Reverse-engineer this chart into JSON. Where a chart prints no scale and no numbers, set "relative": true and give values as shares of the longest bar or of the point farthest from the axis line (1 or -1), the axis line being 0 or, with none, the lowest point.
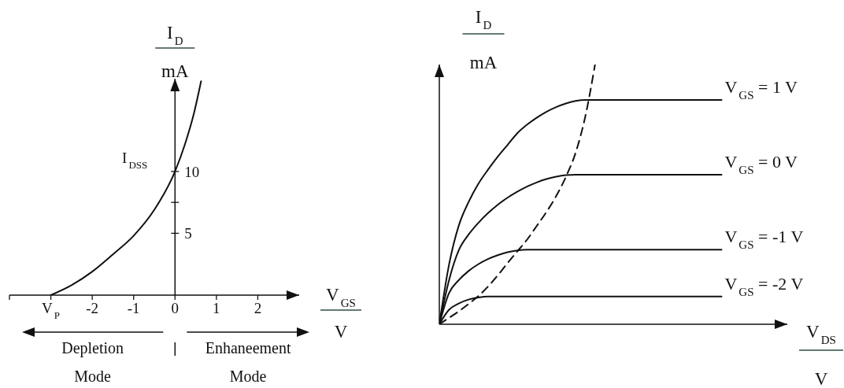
{
  "chart_data": [
    {
      "type": "line",
      "xlabel": "V$_{GS}$\nV",
      "ylabel": "I$_{D}$\nmA",
      "x": [
        -3,
        -2.5,
        -2,
        -1.5,
        -1,
        -0.5,
        0,
        0.25,
        0.45,
        0.63
      ],
      "values": [
        0,
        0.8,
        1.9,
        3.3,
        4.8,
        6.9,
        10,
        12.3,
        14.6,
        17.3
      ],
      "color": "#111111",
      "xlim": [
        -4,
        3
      ],
      "ylim": [
        0,
        17.5
      ],
      "xticks": [
        {
          "value": -4,
          "label": null
        },
        {
          "value": -3,
          "label": "V$_{P}$"
        },
        -2,
        -1,
        0,
        1,
        2
      ],
      "yticks": [
        5,
        {
          "value": 7.5,
          "label": null
        },
        10
      ],
      "annotations": [
        {
          "text": "I$_{DSS}$",
          "x": 0,
          "y": 10
        },
        "Depletion\nMode",
        "Enhaneement\nMode"
      ]
    },
    {
      "type": "line",
      "relative": true,
      "xlabel": "V$_{DS}$\nV",
      "ylabel": "I$_{D}$\nmA",
      "categories": [
        null,
        null,
        null,
        null,
        null,
        null,
        null,
        null,
        null,
        null,
        null,
        null,
        null,
        null,
        null,
        null,
        null,
        null,
        null,
        null,
        null,
        null,
        null,
        null,
        null,
        null,
        null,
        null,
        null,
        null
      ],
      "series": [
        {
          "name": "V$_{GS}$ = 1 V",
          "color": "#111111",
          "values": [
            0,
            0.23,
            0.38,
            0.47,
            0.54,
            0.595,
            0.645,
            0.69,
            0.735,
            0.768,
            0.795,
            0.818,
            0.836,
            0.85,
            0.86,
            0.864,
            0.864,
            0.864,
            0.864,
            0.864,
            0.864,
            0.864,
            0.864,
            0.864,
            0.864,
            0.864,
            0.864,
            0.864,
            0.864,
            0.864
          ]
        },
        {
          "name": "V$_{GS}$ = 0 V",
          "color": "#111111",
          "values": [
            0,
            0.17,
            0.285,
            0.345,
            0.39,
            0.428,
            0.46,
            0.487,
            0.51,
            0.53,
            0.546,
            0.559,
            0.568,
            0.574,
            0.576,
            0.576,
            0.576,
            0.576,
            0.576,
            0.576,
            0.576,
            0.576,
            0.576,
            0.576,
            0.576,
            0.576,
            0.576,
            0.576,
            0.576,
            0.576
          ]
        },
        {
          "name": "V$_{GS}$ = -1 V",
          "color": "#111111",
          "values": [
            0,
            0.12,
            0.17,
            0.205,
            0.231,
            0.251,
            0.266,
            0.277,
            0.284,
            0.287,
            0.287,
            0.287,
            0.287,
            0.287,
            0.287,
            0.287,
            0.287,
            0.287,
            0.287,
            0.287,
            0.287,
            0.287,
            0.287,
            0.287,
            0.287,
            0.287,
            0.287,
            0.287,
            0.287,
            0.287
          ]
        },
        {
          "name": "V$_{GS}$ = -2 V",
          "color": "#111111",
          "values": [
            0,
            0.056,
            0.08,
            0.095,
            0.103,
            0.107,
            0.107,
            0.107,
            0.107,
            0.107,
            0.107,
            0.107,
            0.107,
            0.107,
            0.107,
            0.107,
            0.107,
            0.107,
            0.107,
            0.107,
            0.107,
            0.107,
            0.107,
            0.107,
            0.107,
            0.107,
            0.107,
            0.107,
            0.107,
            0.107
          ]
        },
        {
          "color": "#111111",
          "line_style": "dashed",
          "values": [
            0,
            0.025,
            0.05,
            0.078,
            0.108,
            0.145,
            0.188,
            0.235,
            0.28,
            0.325,
            0.378,
            0.432,
            0.493,
            0.567,
            0.66,
            0.8,
            1,
            null,
            null,
            null,
            null,
            null,
            null,
            null,
            null,
            null,
            null,
            null,
            null,
            null
          ]
        }
      ]
    }
  ]
}
